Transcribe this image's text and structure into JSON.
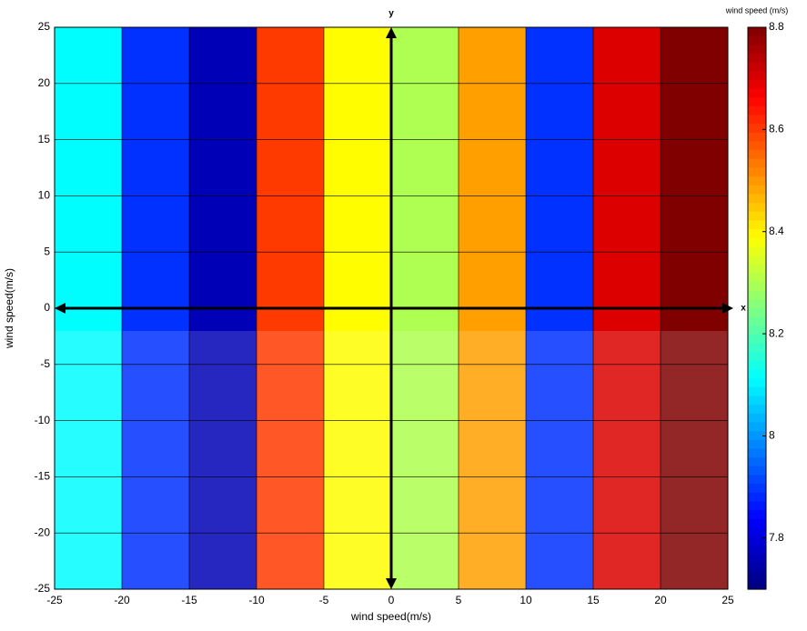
{
  "chart_data": {
    "type": "heatmap",
    "xlabel": "wind speed(m/s)",
    "ylabel": "wind speed(m/s)",
    "x_axis_name": "x",
    "y_axis_name": "y",
    "colorbar_label": "wind speed (m/s)",
    "colormap": "jet",
    "xbins": [
      -25,
      -20,
      -15,
      -10,
      -5,
      0,
      5,
      10,
      15,
      20,
      25
    ],
    "values": [
      8.11,
      7.89,
      7.76,
      8.6,
      8.39,
      8.3,
      8.49,
      7.89,
      8.7,
      8.8
    ],
    "xlim": [
      -25,
      25
    ],
    "ylim": [
      -25,
      25
    ],
    "xticks": [
      -25,
      -20,
      -15,
      -10,
      -5,
      0,
      5,
      10,
      15,
      20,
      25
    ],
    "yticks": [
      -25,
      -20,
      -15,
      -10,
      -5,
      0,
      5,
      10,
      15,
      20,
      25
    ],
    "clim": [
      7.7,
      8.8
    ],
    "cticks": [
      7.8,
      8,
      8.2,
      8.4,
      8.6,
      8.8
    ],
    "grid": true
  }
}
